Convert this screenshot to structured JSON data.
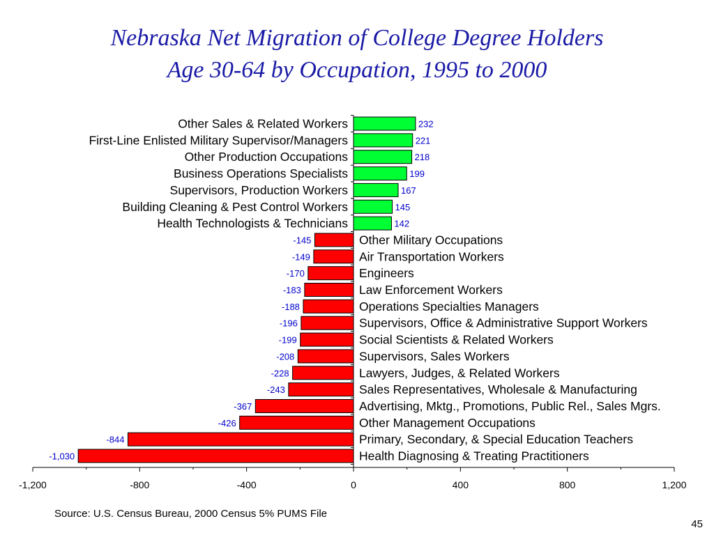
{
  "title_line1": "Nebraska Net Migration of College Degree Holders",
  "title_line2": "Age 30-64 by Occupation, 1995 to 2000",
  "source": "Source:  U.S. Census Bureau, 2000 Census 5% PUMS File",
  "page_number": "45",
  "colors": {
    "positive": "#00ff33",
    "negative": "#ff0000",
    "value_label": "#0000cc",
    "title": "#1a1aa6"
  },
  "chart_data": {
    "type": "bar",
    "orientation": "horizontal",
    "title": "Nebraska Net Migration of College Degree Holders Age 30-64 by Occupation, 1995 to 2000",
    "xlim": [
      -1200,
      1200
    ],
    "x_ticks": [
      -1200,
      -800,
      -400,
      0,
      400,
      800,
      1200
    ],
    "x_tick_labels": [
      "-1,200",
      "-800",
      "-400",
      "0",
      "400",
      "800",
      "1,200"
    ],
    "grid": false,
    "categories": [
      "Other Sales & Related Workers",
      "First-Line Enlisted Military Supervisor/Managers",
      "Other Production Occupations",
      "Business Operations Specialists",
      "Supervisors, Production Workers",
      "Building Cleaning & Pest Control Workers",
      "Health Technologists & Technicians",
      "Other Military Occupations",
      "Air Transportation Workers",
      "Engineers",
      "Law Enforcement Workers",
      "Operations Specialties Managers",
      "Supervisors, Office & Administrative Support Workers",
      "Social Scientists & Related Workers",
      "Supervisors, Sales Workers",
      "Lawyers, Judges, & Related Workers",
      "Sales Representatives, Wholesale & Manufacturing",
      "Advertising, Mktg., Promotions, Public Rel., Sales Mgrs.",
      "Other Management Occupations",
      "Primary, Secondary, & Special Education Teachers",
      "Health Diagnosing & Treating Practitioners"
    ],
    "values": [
      232,
      221,
      218,
      199,
      167,
      145,
      142,
      -145,
      -149,
      -170,
      -183,
      -188,
      -196,
      -199,
      -208,
      -228,
      -243,
      -367,
      -426,
      -844,
      -1030
    ],
    "value_labels": [
      "232",
      "221",
      "218",
      "199",
      "167",
      "145",
      "142",
      "-145",
      "-149",
      "-170",
      "-183",
      "-188",
      "-196",
      "-199",
      "-208",
      "-228",
      "-243",
      "-367",
      "-426",
      "-844",
      "-1,030"
    ]
  }
}
